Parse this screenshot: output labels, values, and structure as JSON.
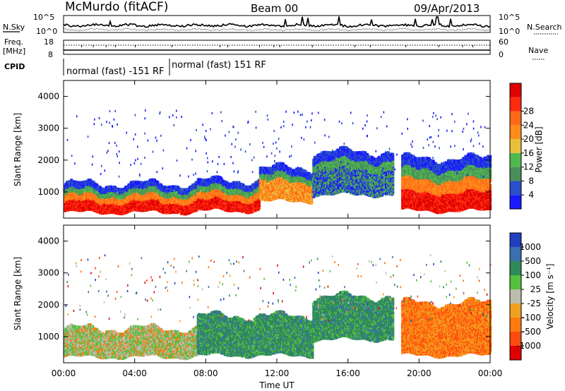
{
  "header": {
    "station": "McMurdo (fitACF)",
    "beam": "Beam 00",
    "date": "09/Apr/2013"
  },
  "noise_panel": {
    "left_label": "N.Sky",
    "right_label": "N.Search",
    "left_ticks": [
      "10^5",
      "10^0"
    ],
    "right_ticks": [
      "10^5",
      "10^0"
    ]
  },
  "freq_panel": {
    "left_label_line1": "Freq.",
    "left_label_line2": "[MHz]",
    "left_ticks": [
      "18",
      "8"
    ],
    "right_label": "Nave",
    "right_ticks": [
      "60",
      "0"
    ]
  },
  "cpid_panel": {
    "label": "CPID",
    "segments": [
      "normal (fast) -151 RF",
      "normal (fast) 151 RF"
    ]
  },
  "chart_data": [
    {
      "type": "heatmap",
      "title": "",
      "ylabel": "Slant Range [km]",
      "xlabel": "",
      "ylim": [
        180,
        4500
      ],
      "yticks": [
        "1000",
        "2000",
        "3000",
        "4000"
      ],
      "xticks": [
        "00:00",
        "04:00",
        "08:00",
        "12:00",
        "16:00",
        "20:00",
        "00:00"
      ],
      "colorbar": {
        "label": "Power [dB]",
        "ticks": [
          "4",
          "8",
          "12",
          "16",
          "20",
          "24",
          "28"
        ],
        "colors": [
          "#1a1aff",
          "#2a4fc8",
          "#4a8f5a",
          "#4fb84f",
          "#e8c03a",
          "#ff8c1a",
          "#ff6a1a",
          "#ff2a10",
          "#e00000"
        ]
      },
      "scatter_bands": [
        {
          "start_hour": 0,
          "end_hour": 7.5,
          "bottom_km": 350,
          "top_km": 1200,
          "peak": "red"
        },
        {
          "start_hour": 7.5,
          "end_hour": 11,
          "bottom_km": 400,
          "top_km": 1300,
          "peak": "red"
        },
        {
          "start_hour": 11,
          "end_hour": 14,
          "bottom_km": 700,
          "top_km": 1700,
          "peak": "orange"
        },
        {
          "start_hour": 14,
          "end_hour": 18.5,
          "bottom_km": 900,
          "top_km": 2200,
          "peak": "blue"
        },
        {
          "start_hour": 19,
          "end_hour": 24,
          "bottom_km": 400,
          "top_km": 2000,
          "peak": "red"
        }
      ]
    },
    {
      "type": "heatmap",
      "title": "",
      "ylabel": "Slant Range [km]",
      "xlabel": "Time UT",
      "ylim": [
        180,
        4500
      ],
      "yticks": [
        "1000",
        "2000",
        "3000",
        "4000"
      ],
      "xticks": [
        "00:00",
        "04:00",
        "08:00",
        "12:00",
        "16:00",
        "20:00",
        "00:00"
      ],
      "colorbar": {
        "label": "Velocity [m s⁻¹]",
        "ticks": [
          "1000",
          "500",
          "100",
          "25",
          "-25",
          "-100",
          "-500",
          "-1000"
        ],
        "colors": [
          "#2040c0",
          "#3a6fb0",
          "#2e8b57",
          "#55c040",
          "#bdbdad",
          "#f0a020",
          "#ff7a10",
          "#ff4a10",
          "#e00000"
        ]
      },
      "scatter_bands": [
        {
          "start_hour": 0,
          "end_hour": 7.5,
          "bottom_km": 350,
          "top_km": 1200,
          "dominant": "green/grey"
        },
        {
          "start_hour": 7.5,
          "end_hour": 14,
          "bottom_km": 400,
          "top_km": 1600,
          "dominant": "green"
        },
        {
          "start_hour": 14,
          "end_hour": 18.5,
          "bottom_km": 900,
          "top_km": 2200,
          "dominant": "green"
        },
        {
          "start_hour": 19,
          "end_hour": 24,
          "bottom_km": 400,
          "top_km": 2000,
          "dominant": "orange"
        }
      ]
    }
  ]
}
